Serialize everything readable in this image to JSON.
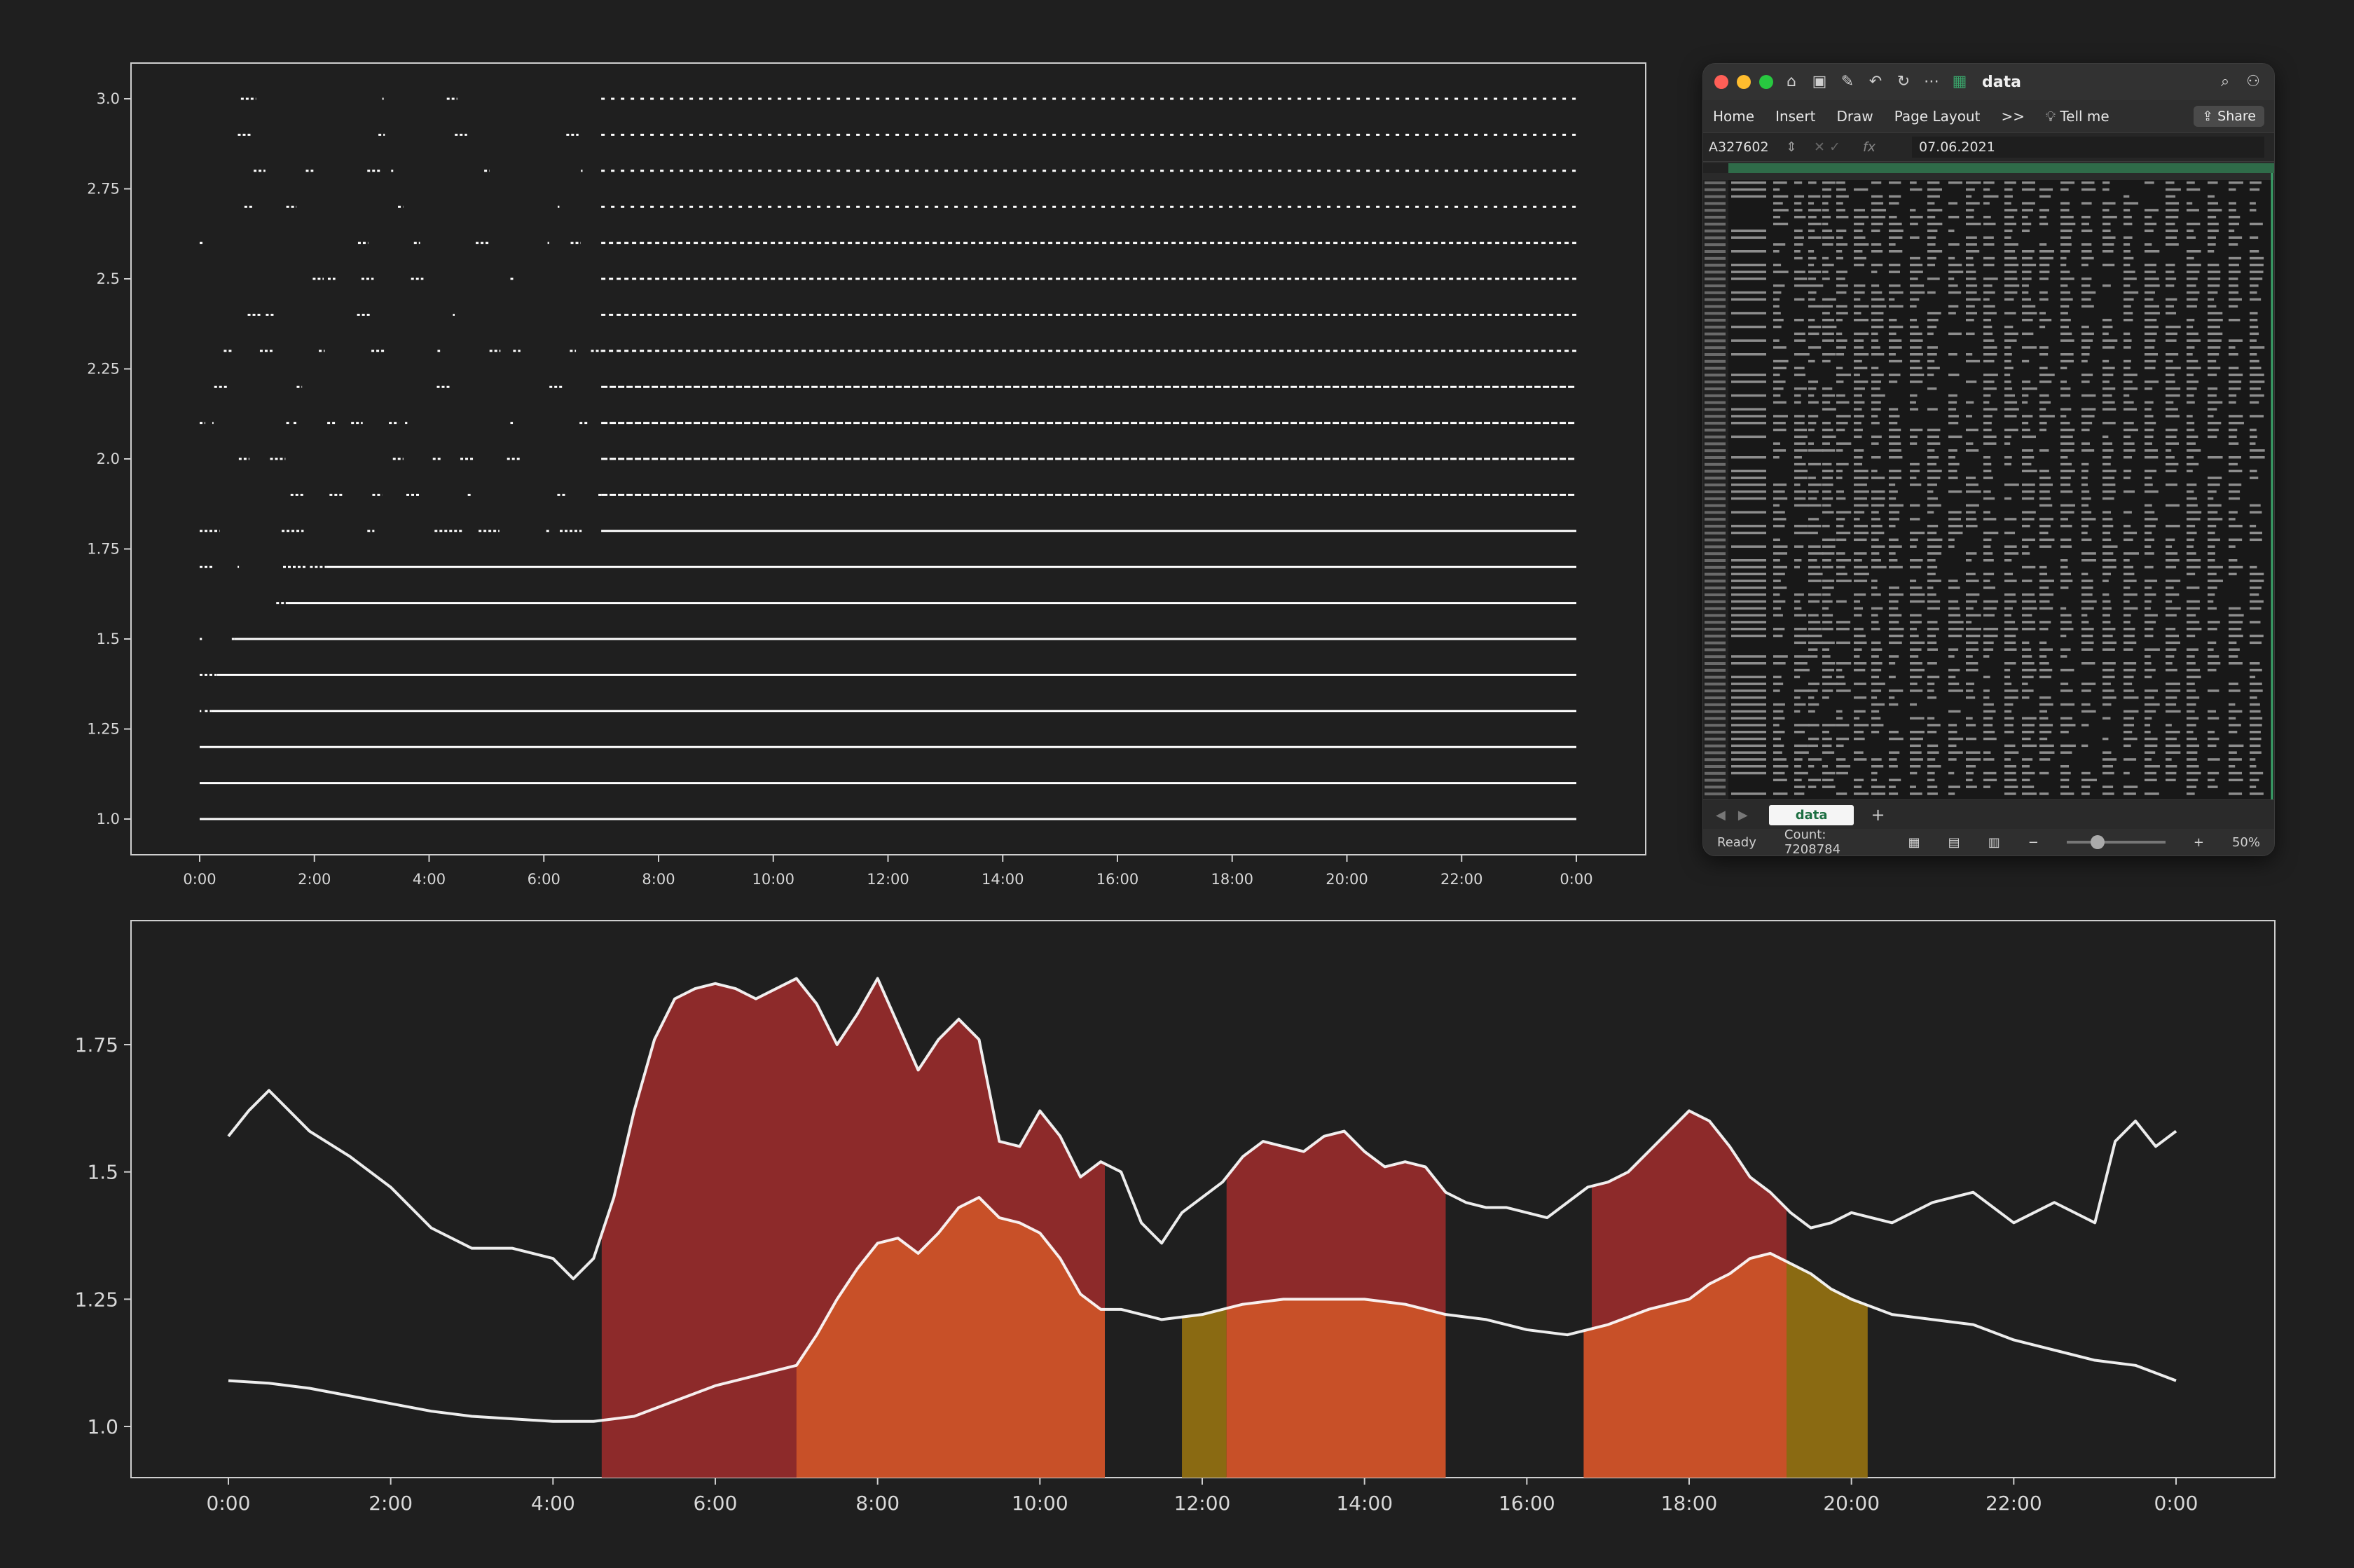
{
  "chart_data": [
    {
      "type": "scatter",
      "description": "Barcode-style strip plot of discrete values over one day",
      "xlabel": "",
      "ylabel": "",
      "x_tick_labels": [
        "0:00",
        "2:00",
        "4:00",
        "6:00",
        "8:00",
        "10:00",
        "12:00",
        "14:00",
        "16:00",
        "18:00",
        "20:00",
        "22:00",
        "0:00"
      ],
      "y_tick_labels": [
        "1.0",
        "1.25",
        "1.5",
        "1.75",
        "2.0",
        "2.25",
        "2.5",
        "2.75",
        "3.0"
      ],
      "ylim": [
        0.95,
        3.05
      ],
      "xlim_hours": [
        -1.2,
        25.2
      ],
      "levels": [
        1.0,
        1.1,
        1.2,
        1.3,
        1.4,
        1.5,
        1.6,
        1.7,
        1.8,
        1.9,
        2.0,
        2.1,
        2.2,
        2.3,
        2.4,
        2.5,
        2.6,
        2.7,
        2.8,
        2.9,
        3.0
      ],
      "level_density_start_hour": [
        0.0,
        0.0,
        0.0,
        0.2,
        0.3,
        0.6,
        1.5,
        2.2,
        7.0,
        7.0,
        7.0,
        7.0,
        7.0,
        7.0,
        7.0,
        7.0,
        7.0,
        7.0,
        7.0,
        7.0,
        7.0
      ],
      "grid": false,
      "color": "#ffffff"
    },
    {
      "type": "area",
      "description": "Two smoothed daily curves with highlighted time windows",
      "xlabel": "",
      "ylabel": "",
      "x_tick_labels": [
        "0:00",
        "2:00",
        "4:00",
        "6:00",
        "8:00",
        "10:00",
        "12:00",
        "14:00",
        "16:00",
        "18:00",
        "20:00",
        "22:00",
        "0:00"
      ],
      "y_tick_labels": [
        "1.0",
        "1.25",
        "1.5",
        "1.75"
      ],
      "ylim": [
        0.9,
        1.98
      ],
      "xlim_hours": [
        -1.2,
        25.2
      ],
      "series": [
        {
          "color": "#ffffff",
          "x_hours": [
            0,
            0.25,
            0.5,
            0.75,
            1,
            1.5,
            2,
            2.5,
            3,
            3.5,
            4,
            4.25,
            4.5,
            4.75,
            5,
            5.25,
            5.5,
            5.75,
            6,
            6.25,
            6.5,
            6.75,
            7,
            7.25,
            7.5,
            7.75,
            8,
            8.25,
            8.5,
            8.75,
            9,
            9.25,
            9.5,
            9.75,
            10,
            10.25,
            10.5,
            10.75,
            11,
            11.25,
            11.5,
            11.75,
            12,
            12.25,
            12.5,
            12.75,
            13,
            13.25,
            13.5,
            13.75,
            14,
            14.25,
            14.5,
            14.75,
            15,
            15.25,
            15.5,
            15.75,
            16,
            16.25,
            16.5,
            16.75,
            17,
            17.25,
            17.5,
            17.75,
            18,
            18.25,
            18.5,
            18.75,
            19,
            19.25,
            19.5,
            19.75,
            20,
            20.5,
            21,
            21.5,
            22,
            22.5,
            23,
            23.25,
            23.5,
            23.75,
            24
          ],
          "values": [
            1.57,
            1.62,
            1.66,
            1.62,
            1.58,
            1.53,
            1.47,
            1.39,
            1.35,
            1.35,
            1.33,
            1.29,
            1.33,
            1.45,
            1.62,
            1.76,
            1.84,
            1.86,
            1.87,
            1.86,
            1.84,
            1.86,
            1.88,
            1.83,
            1.75,
            1.81,
            1.88,
            1.79,
            1.7,
            1.76,
            1.8,
            1.76,
            1.56,
            1.55,
            1.62,
            1.57,
            1.49,
            1.52,
            1.5,
            1.4,
            1.36,
            1.42,
            1.45,
            1.48,
            1.53,
            1.56,
            1.55,
            1.54,
            1.57,
            1.58,
            1.54,
            1.51,
            1.52,
            1.51,
            1.46,
            1.44,
            1.43,
            1.43,
            1.42,
            1.41,
            1.44,
            1.47,
            1.48,
            1.5,
            1.54,
            1.58,
            1.62,
            1.6,
            1.55,
            1.49,
            1.46,
            1.42,
            1.39,
            1.4,
            1.42,
            1.4,
            1.44,
            1.46,
            1.4,
            1.44,
            1.4,
            1.56,
            1.6,
            1.55,
            1.58
          ]
        },
        {
          "color": "#ffffff",
          "x_hours": [
            0,
            0.5,
            1,
            1.5,
            2,
            2.5,
            3,
            3.5,
            4,
            4.25,
            4.5,
            4.75,
            5,
            5.5,
            6,
            6.5,
            7,
            7.25,
            7.5,
            7.75,
            8,
            8.25,
            8.5,
            8.75,
            9,
            9.25,
            9.5,
            9.75,
            10,
            10.25,
            10.5,
            10.75,
            11,
            11.5,
            12,
            12.5,
            13,
            13.5,
            14,
            14.5,
            15,
            15.5,
            16,
            16.5,
            17,
            17.5,
            18,
            18.25,
            18.5,
            18.75,
            19,
            19.25,
            19.5,
            19.75,
            20,
            20.5,
            21,
            21.5,
            22,
            22.5,
            23,
            23.5,
            24
          ],
          "values": [
            1.09,
            1.085,
            1.075,
            1.06,
            1.045,
            1.03,
            1.02,
            1.015,
            1.01,
            1.01,
            1.01,
            1.015,
            1.02,
            1.05,
            1.08,
            1.1,
            1.12,
            1.18,
            1.25,
            1.31,
            1.36,
            1.37,
            1.34,
            1.38,
            1.43,
            1.45,
            1.41,
            1.4,
            1.38,
            1.33,
            1.26,
            1.23,
            1.23,
            1.21,
            1.22,
            1.24,
            1.25,
            1.25,
            1.25,
            1.24,
            1.22,
            1.21,
            1.19,
            1.18,
            1.2,
            1.23,
            1.25,
            1.28,
            1.3,
            1.33,
            1.34,
            1.32,
            1.3,
            1.27,
            1.25,
            1.22,
            1.21,
            1.2,
            1.17,
            1.15,
            1.13,
            1.12,
            1.09
          ]
        }
      ],
      "highlights": [
        {
          "layer": "upper",
          "from_hours": 4.6,
          "to_hours": 10.8,
          "color": "#8d2a2a"
        },
        {
          "layer": "upper",
          "from_hours": 12.3,
          "to_hours": 15.0,
          "color": "#8d2a2a"
        },
        {
          "layer": "upper",
          "from_hours": 16.8,
          "to_hours": 19.2,
          "color": "#8d2a2a"
        },
        {
          "layer": "lower",
          "from_hours": 7.0,
          "to_hours": 10.8,
          "color": "#c85028"
        },
        {
          "layer": "lower",
          "from_hours": 11.75,
          "to_hours": 12.3,
          "color": "#8a6a12"
        },
        {
          "layer": "lower",
          "from_hours": 12.3,
          "to_hours": 15.0,
          "color": "#c85028"
        },
        {
          "layer": "lower",
          "from_hours": 16.7,
          "to_hours": 19.2,
          "color": "#c85028"
        },
        {
          "layer": "lower",
          "from_hours": 19.2,
          "to_hours": 20.2,
          "color": "#8a6a12"
        }
      ],
      "grid": false
    }
  ],
  "excel": {
    "title": "data",
    "ribbon_tabs": [
      "Home",
      "Insert",
      "Draw",
      "Page Layout"
    ],
    "more_symbol": ">>",
    "tell_me": "Tell me",
    "share_label": "Share",
    "name_box": "A327602",
    "fx_label": "fx",
    "formula_value": "07.06.2021",
    "sheet_tab": "data",
    "add_sheet": "+",
    "status_ready": "Ready",
    "status_count": "Count: 7208784",
    "zoom": "50%",
    "zoom_minus": "−",
    "zoom_plus": "+",
    "colors": {
      "sheet_accent": "#1d6f42",
      "header_green": "#2f6b49"
    }
  }
}
